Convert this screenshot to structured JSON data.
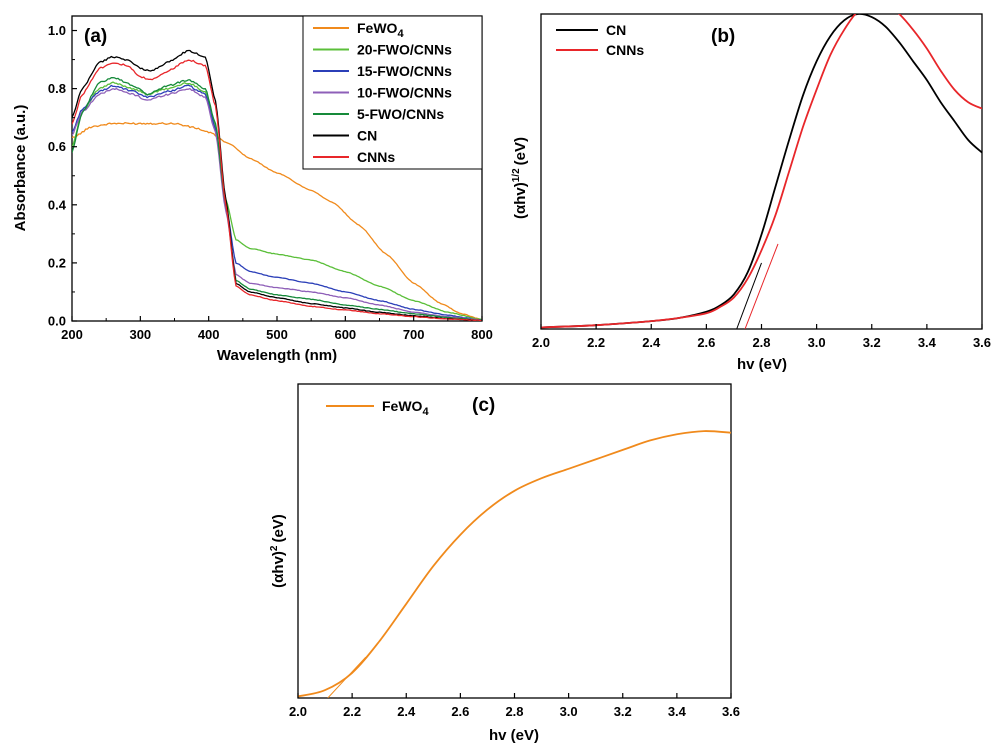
{
  "chart_data": [
    {
      "id": "a",
      "type": "line",
      "panel_label": "(a)",
      "xlabel": "Wavelength (nm)",
      "ylabel": "Absorbance (a.u.)",
      "xlim": [
        200,
        800
      ],
      "ylim": [
        0,
        1.05
      ],
      "xticks": [
        "200",
        "300",
        "400",
        "500",
        "600",
        "700",
        "800"
      ],
      "yticks": [
        "0.0",
        "0.2",
        "0.4",
        "0.6",
        "0.8",
        "1.0"
      ],
      "xtick_values": [
        200,
        300,
        400,
        500,
        600,
        700,
        800
      ],
      "ytick_values": [
        0,
        0.2,
        0.4,
        0.6,
        0.8,
        1.0
      ],
      "legend": "top-right",
      "grid": false,
      "series": [
        {
          "name": "FeWO",
          "name_sub": "4",
          "color": "#f08a1c",
          "x": [
            200,
            230,
            260,
            300,
            350,
            380,
            400,
            430,
            460,
            500,
            550,
            580,
            620,
            660,
            700,
            740,
            770,
            800
          ],
          "y": [
            0.63,
            0.67,
            0.68,
            0.68,
            0.68,
            0.665,
            0.65,
            0.61,
            0.56,
            0.51,
            0.45,
            0.41,
            0.33,
            0.23,
            0.13,
            0.06,
            0.025,
            0.005
          ]
        },
        {
          "name": "20-FWO/CNNs",
          "color": "#5bbf3a",
          "x": [
            200,
            215,
            240,
            260,
            290,
            310,
            340,
            370,
            395,
            410,
            425,
            440,
            460,
            500,
            550,
            600,
            650,
            700,
            750,
            800
          ],
          "y": [
            0.6,
            0.72,
            0.8,
            0.82,
            0.8,
            0.78,
            0.8,
            0.82,
            0.79,
            0.67,
            0.42,
            0.28,
            0.25,
            0.23,
            0.21,
            0.17,
            0.12,
            0.07,
            0.03,
            0.005
          ]
        },
        {
          "name": "15-FWO/CNNs",
          "color": "#2b3fb8",
          "x": [
            200,
            215,
            240,
            260,
            290,
            310,
            340,
            370,
            395,
            410,
            425,
            440,
            460,
            500,
            550,
            600,
            650,
            700,
            750,
            800
          ],
          "y": [
            0.65,
            0.73,
            0.79,
            0.81,
            0.79,
            0.77,
            0.79,
            0.81,
            0.78,
            0.66,
            0.4,
            0.2,
            0.17,
            0.15,
            0.13,
            0.1,
            0.07,
            0.04,
            0.02,
            0.003
          ]
        },
        {
          "name": "10-FWO/CNNs",
          "color": "#8e5fb8",
          "x": [
            200,
            215,
            240,
            260,
            290,
            310,
            340,
            370,
            395,
            410,
            425,
            440,
            460,
            500,
            550,
            600,
            650,
            700,
            750,
            800
          ],
          "y": [
            0.64,
            0.72,
            0.78,
            0.8,
            0.78,
            0.76,
            0.78,
            0.8,
            0.77,
            0.65,
            0.38,
            0.16,
            0.13,
            0.115,
            0.1,
            0.08,
            0.055,
            0.03,
            0.015,
            0.003
          ]
        },
        {
          "name": "5-FWO/CNNs",
          "color": "#168a3a",
          "x": [
            200,
            215,
            240,
            260,
            290,
            310,
            340,
            370,
            395,
            410,
            425,
            440,
            460,
            500,
            550,
            600,
            650,
            700,
            750,
            800
          ],
          "y": [
            0.58,
            0.72,
            0.82,
            0.84,
            0.81,
            0.78,
            0.81,
            0.83,
            0.8,
            0.68,
            0.4,
            0.14,
            0.11,
            0.09,
            0.075,
            0.055,
            0.04,
            0.025,
            0.012,
            0.002
          ]
        },
        {
          "name": "CN",
          "color": "#000000",
          "x": [
            200,
            215,
            240,
            260,
            280,
            300,
            315,
            340,
            370,
            395,
            410,
            425,
            440,
            460,
            500,
            550,
            600,
            650,
            700,
            750,
            800
          ],
          "y": [
            0.7,
            0.8,
            0.89,
            0.91,
            0.9,
            0.87,
            0.86,
            0.89,
            0.93,
            0.91,
            0.76,
            0.42,
            0.13,
            0.1,
            0.08,
            0.06,
            0.045,
            0.03,
            0.018,
            0.008,
            0.002
          ]
        },
        {
          "name": "CNNs",
          "color": "#e8262a",
          "x": [
            200,
            215,
            240,
            260,
            280,
            300,
            315,
            340,
            370,
            395,
            410,
            425,
            440,
            460,
            500,
            550,
            600,
            650,
            700,
            750,
            800
          ],
          "y": [
            0.68,
            0.78,
            0.87,
            0.89,
            0.88,
            0.84,
            0.83,
            0.86,
            0.9,
            0.88,
            0.74,
            0.4,
            0.12,
            0.09,
            0.07,
            0.05,
            0.038,
            0.025,
            0.015,
            0.007,
            0.002
          ]
        }
      ]
    },
    {
      "id": "b",
      "type": "line",
      "panel_label": "(b)",
      "xlabel": "hv (eV)",
      "ylabel": "(αhv)",
      "ylabel_sup": "1/2",
      "ylabel_unit": "(eV)",
      "xlim": [
        2.0,
        3.6
      ],
      "ylim": [
        0,
        1.0
      ],
      "xticks": [
        "2.0",
        "2.2",
        "2.4",
        "2.6",
        "2.8",
        "3.0",
        "3.2",
        "3.4",
        "3.6"
      ],
      "xtick_values": [
        2.0,
        2.2,
        2.4,
        2.6,
        2.8,
        3.0,
        3.2,
        3.4,
        3.6
      ],
      "legend": "top-left",
      "grid": false,
      "series": [
        {
          "name": "CN",
          "color": "#000000",
          "x": [
            2.0,
            2.2,
            2.4,
            2.5,
            2.6,
            2.65,
            2.7,
            2.75,
            2.8,
            2.85,
            2.9,
            2.95,
            3.0,
            3.05,
            3.1,
            3.15,
            3.2,
            3.25,
            3.3,
            3.35,
            3.4,
            3.45,
            3.5,
            3.55,
            3.6
          ],
          "y": [
            0.005,
            0.012,
            0.025,
            0.035,
            0.055,
            0.075,
            0.11,
            0.18,
            0.3,
            0.45,
            0.6,
            0.74,
            0.85,
            0.93,
            0.98,
            1.0,
            0.99,
            0.96,
            0.91,
            0.85,
            0.79,
            0.72,
            0.66,
            0.6,
            0.56
          ]
        },
        {
          "name": "CNNs",
          "color": "#e8262a",
          "x": [
            2.0,
            2.2,
            2.4,
            2.5,
            2.6,
            2.65,
            2.7,
            2.75,
            2.8,
            2.85,
            2.9,
            2.95,
            3.0,
            3.05,
            3.1,
            3.15,
            3.2,
            3.25,
            3.3,
            3.35,
            3.4,
            3.45,
            3.5,
            3.55,
            3.6
          ],
          "y": [
            0.005,
            0.012,
            0.025,
            0.035,
            0.05,
            0.07,
            0.1,
            0.16,
            0.25,
            0.36,
            0.5,
            0.64,
            0.76,
            0.87,
            0.95,
            1.01,
            1.04,
            1.035,
            1.0,
            0.95,
            0.89,
            0.82,
            0.76,
            0.72,
            0.7
          ]
        },
        {
          "name": "CN tangent",
          "color": "#000000",
          "role": "tangent",
          "legend": false,
          "x": [
            2.71,
            2.8
          ],
          "y": [
            0.0,
            0.21
          ]
        },
        {
          "name": "CNNs tangent",
          "color": "#e8262a",
          "role": "tangent",
          "legend": false,
          "x": [
            2.74,
            2.86
          ],
          "y": [
            0.0,
            0.27
          ]
        }
      ]
    },
    {
      "id": "c",
      "type": "line",
      "panel_label": "(c)",
      "xlabel": "hv (eV)",
      "ylabel": "(αhv)",
      "ylabel_sup": "2",
      "ylabel_unit": "(eV)",
      "xlim": [
        2.0,
        3.6
      ],
      "ylim": [
        0,
        1.0
      ],
      "xticks": [
        "2.0",
        "2.2",
        "2.4",
        "2.6",
        "2.8",
        "3.0",
        "3.2",
        "3.4",
        "3.6"
      ],
      "xtick_values": [
        2.0,
        2.2,
        2.4,
        2.6,
        2.8,
        3.0,
        3.2,
        3.4,
        3.6
      ],
      "legend": "top-left",
      "grid": false,
      "series": [
        {
          "name": "FeWO",
          "name_sub": "4",
          "color": "#f08a1c",
          "x": [
            2.0,
            2.1,
            2.2,
            2.3,
            2.4,
            2.5,
            2.6,
            2.7,
            2.8,
            2.9,
            3.0,
            3.1,
            3.2,
            3.3,
            3.4,
            3.5,
            3.6
          ],
          "y": [
            0.005,
            0.025,
            0.08,
            0.18,
            0.3,
            0.42,
            0.52,
            0.6,
            0.66,
            0.7,
            0.73,
            0.76,
            0.79,
            0.82,
            0.84,
            0.85,
            0.845
          ]
        },
        {
          "name": "FeWO4 tangent",
          "color": "#f08a1c",
          "role": "tangent",
          "legend": false,
          "x": [
            2.11,
            2.25
          ],
          "y": [
            0.0,
            0.13
          ]
        }
      ]
    }
  ]
}
